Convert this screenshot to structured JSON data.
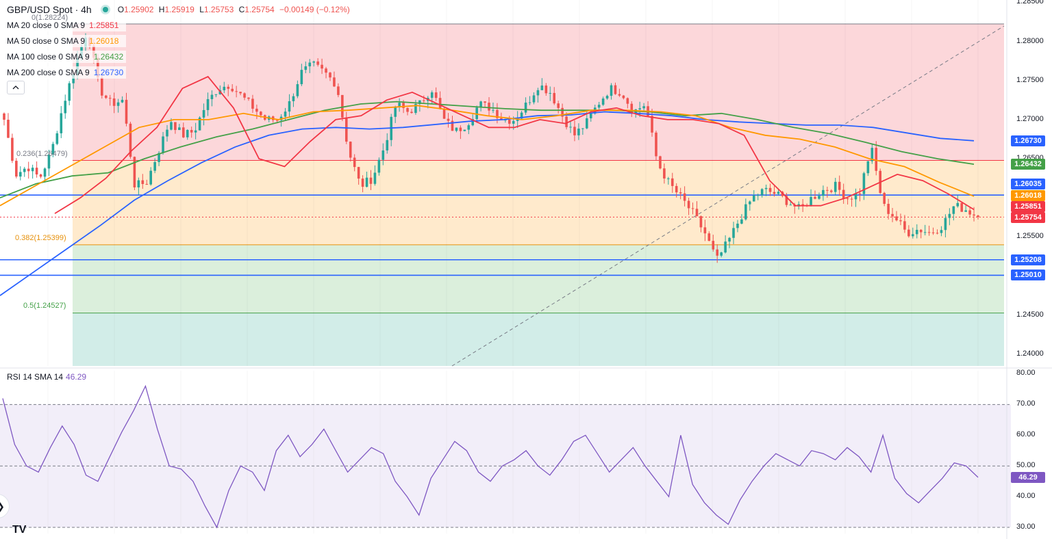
{
  "header": {
    "symbol": "GBP/USD Spot · 4h",
    "open_label": "O",
    "open": "1.25902",
    "high_label": "H",
    "high": "1.25919",
    "low_label": "L",
    "low": "1.25753",
    "close_label": "C",
    "close": "1.25754",
    "change": "−0.00149 (−0.12%)"
  },
  "indicators": [
    {
      "label": "MA 20 close 0 SMA 9",
      "value": "1.25851",
      "color": "#f23645"
    },
    {
      "label": "MA 50 close 0 SMA 9",
      "value": "1.26018",
      "color": "#ff9800"
    },
    {
      "label": "MA 100 close 0 SMA 9",
      "value": "1.26432",
      "color": "#43a047"
    },
    {
      "label": "MA 200 close 0 SMA 9",
      "value": "1.26730",
      "color": "#2962ff"
    }
  ],
  "fib_levels": {
    "zero": "0(1.28224)",
    "l236": "0.236(1.26479)",
    "l382": "0.382(1.25399)",
    "l50": "0.5(1.24527)"
  },
  "price_axis": [
    "1.28500",
    "1.28000",
    "1.27500",
    "1.27000",
    "1.26500",
    "1.26000",
    "1.25500",
    "1.25000",
    "1.24500",
    "1.24000"
  ],
  "price_tags": [
    {
      "value": "1.26730",
      "color": "#2962ff"
    },
    {
      "value": "1.26432",
      "color": "#43a047"
    },
    {
      "value": "1.26035",
      "color": "#2962ff"
    },
    {
      "value": "1.26018",
      "color": "#ff9800"
    },
    {
      "value": "1.25851",
      "color": "#f23645"
    },
    {
      "value": "1.25754",
      "color": "#f23645"
    },
    {
      "value": "1.25208",
      "color": "#2962ff"
    },
    {
      "value": "1.25010",
      "color": "#2962ff"
    }
  ],
  "rsi": {
    "label": "RSI 14 SMA 14",
    "value_text": "46.29",
    "axis": [
      "80.00",
      "70.00",
      "60.00",
      "50.00",
      "40.00",
      "30.00"
    ],
    "color": "#7e57c2"
  },
  "logo": "TV",
  "edge_icon": "❯",
  "collapse_icon": "chevron-up-icon",
  "colors": {
    "up": "#26a69a",
    "down": "#ef5350",
    "hline": "#2962ff"
  },
  "chart_data": {
    "type": "candlestick",
    "price_range": [
      1.2385,
      1.2853
    ],
    "rsi_range": [
      28,
      81
    ],
    "close_path": [
      1.27,
      1.263,
      1.264,
      1.2625,
      1.266,
      1.272,
      1.277,
      1.2815,
      1.274,
      1.272,
      1.2725,
      1.2615,
      1.262,
      1.266,
      1.27,
      1.268,
      1.2685,
      1.272,
      1.274,
      1.2745,
      1.273,
      1.2715,
      1.27,
      1.27,
      1.272,
      1.276,
      1.277,
      1.276,
      1.2745,
      1.266,
      1.2615,
      1.2625,
      1.2665,
      1.272,
      1.271,
      1.272,
      1.274,
      1.27,
      1.2685,
      1.2695,
      1.272,
      1.2715,
      1.27,
      1.27,
      1.272,
      1.2745,
      1.2735,
      1.2705,
      1.268,
      1.2695,
      1.272,
      1.274,
      1.2735,
      1.271,
      1.272,
      1.2645,
      1.2618,
      1.26,
      1.258,
      1.2555,
      1.252,
      1.2545,
      1.2575,
      1.26,
      1.261,
      1.2605,
      1.2595,
      1.2585,
      1.26,
      1.261,
      1.2615,
      1.26,
      1.2605,
      1.2665,
      1.259,
      1.2575,
      1.2555,
      1.256,
      1.2555,
      1.2565,
      1.259,
      1.2585,
      1.25754
    ],
    "ma20": [
      1.258,
      1.26,
      1.2625,
      1.266,
      1.269,
      1.274,
      1.2755,
      1.2715,
      1.265,
      1.264,
      1.2672,
      1.27,
      1.2705,
      1.2725,
      1.2735,
      1.272,
      1.2705,
      1.269,
      1.269,
      1.27,
      1.2695,
      1.271,
      1.2715,
      1.2705,
      1.27,
      1.27,
      1.2695,
      1.268,
      1.2622,
      1.259,
      1.259,
      1.26,
      1.2615,
      1.263,
      1.2622,
      1.2605,
      1.2585
    ],
    "ma50": [
      1.259,
      1.2615,
      1.264,
      1.2665,
      1.269,
      1.27,
      1.27,
      1.2708,
      1.27,
      1.271,
      1.2712,
      1.2715,
      1.2718,
      1.2712,
      1.2705,
      1.27,
      1.2705,
      1.2712,
      1.2712,
      1.271,
      1.2705,
      1.269,
      1.268,
      1.2675,
      1.2665,
      1.265,
      1.264,
      1.262,
      1.2602
    ],
    "ma100": [
      1.26,
      1.2618,
      1.2628,
      1.2632,
      1.265,
      1.2665,
      1.2678,
      1.2688,
      1.27,
      1.2712,
      1.272,
      1.2723,
      1.272,
      1.2717,
      1.2714,
      1.2712,
      1.2712,
      1.2712,
      1.271,
      1.2705,
      1.2708,
      1.27,
      1.269,
      1.2682,
      1.2671,
      1.2659,
      1.265,
      1.2643
    ],
    "ma200": [
      1.2475,
      1.2505,
      1.2535,
      1.2565,
      1.2597,
      1.2622,
      1.2645,
      1.2665,
      1.268,
      1.2688,
      1.269,
      1.2688,
      1.269,
      1.2694,
      1.2698,
      1.27,
      1.2705,
      1.2706,
      1.271,
      1.2708,
      1.2705,
      1.27,
      1.2697,
      1.2695,
      1.2693,
      1.2693,
      1.269,
      1.2683,
      1.2676,
      1.2673
    ],
    "hlines": [
      1.26035,
      1.25208,
      1.2501
    ],
    "rsi_values": [
      72,
      57,
      50,
      48,
      56,
      63,
      57,
      47,
      45,
      53,
      61,
      68,
      76,
      62,
      50,
      49,
      45,
      37,
      30,
      42,
      50,
      48,
      42,
      55,
      60,
      53,
      57,
      62,
      55,
      48,
      52,
      56,
      54,
      45,
      40,
      34,
      46,
      52,
      58,
      55,
      48,
      45,
      50,
      52,
      55,
      50,
      47,
      52,
      58,
      60,
      54,
      48,
      52,
      56,
      50,
      45,
      40,
      60,
      44,
      38,
      34,
      31,
      39,
      45,
      50,
      54,
      52,
      50,
      55,
      54,
      52,
      56,
      53,
      48,
      60,
      46,
      41,
      38,
      42,
      46,
      51,
      50,
      46.29
    ]
  }
}
